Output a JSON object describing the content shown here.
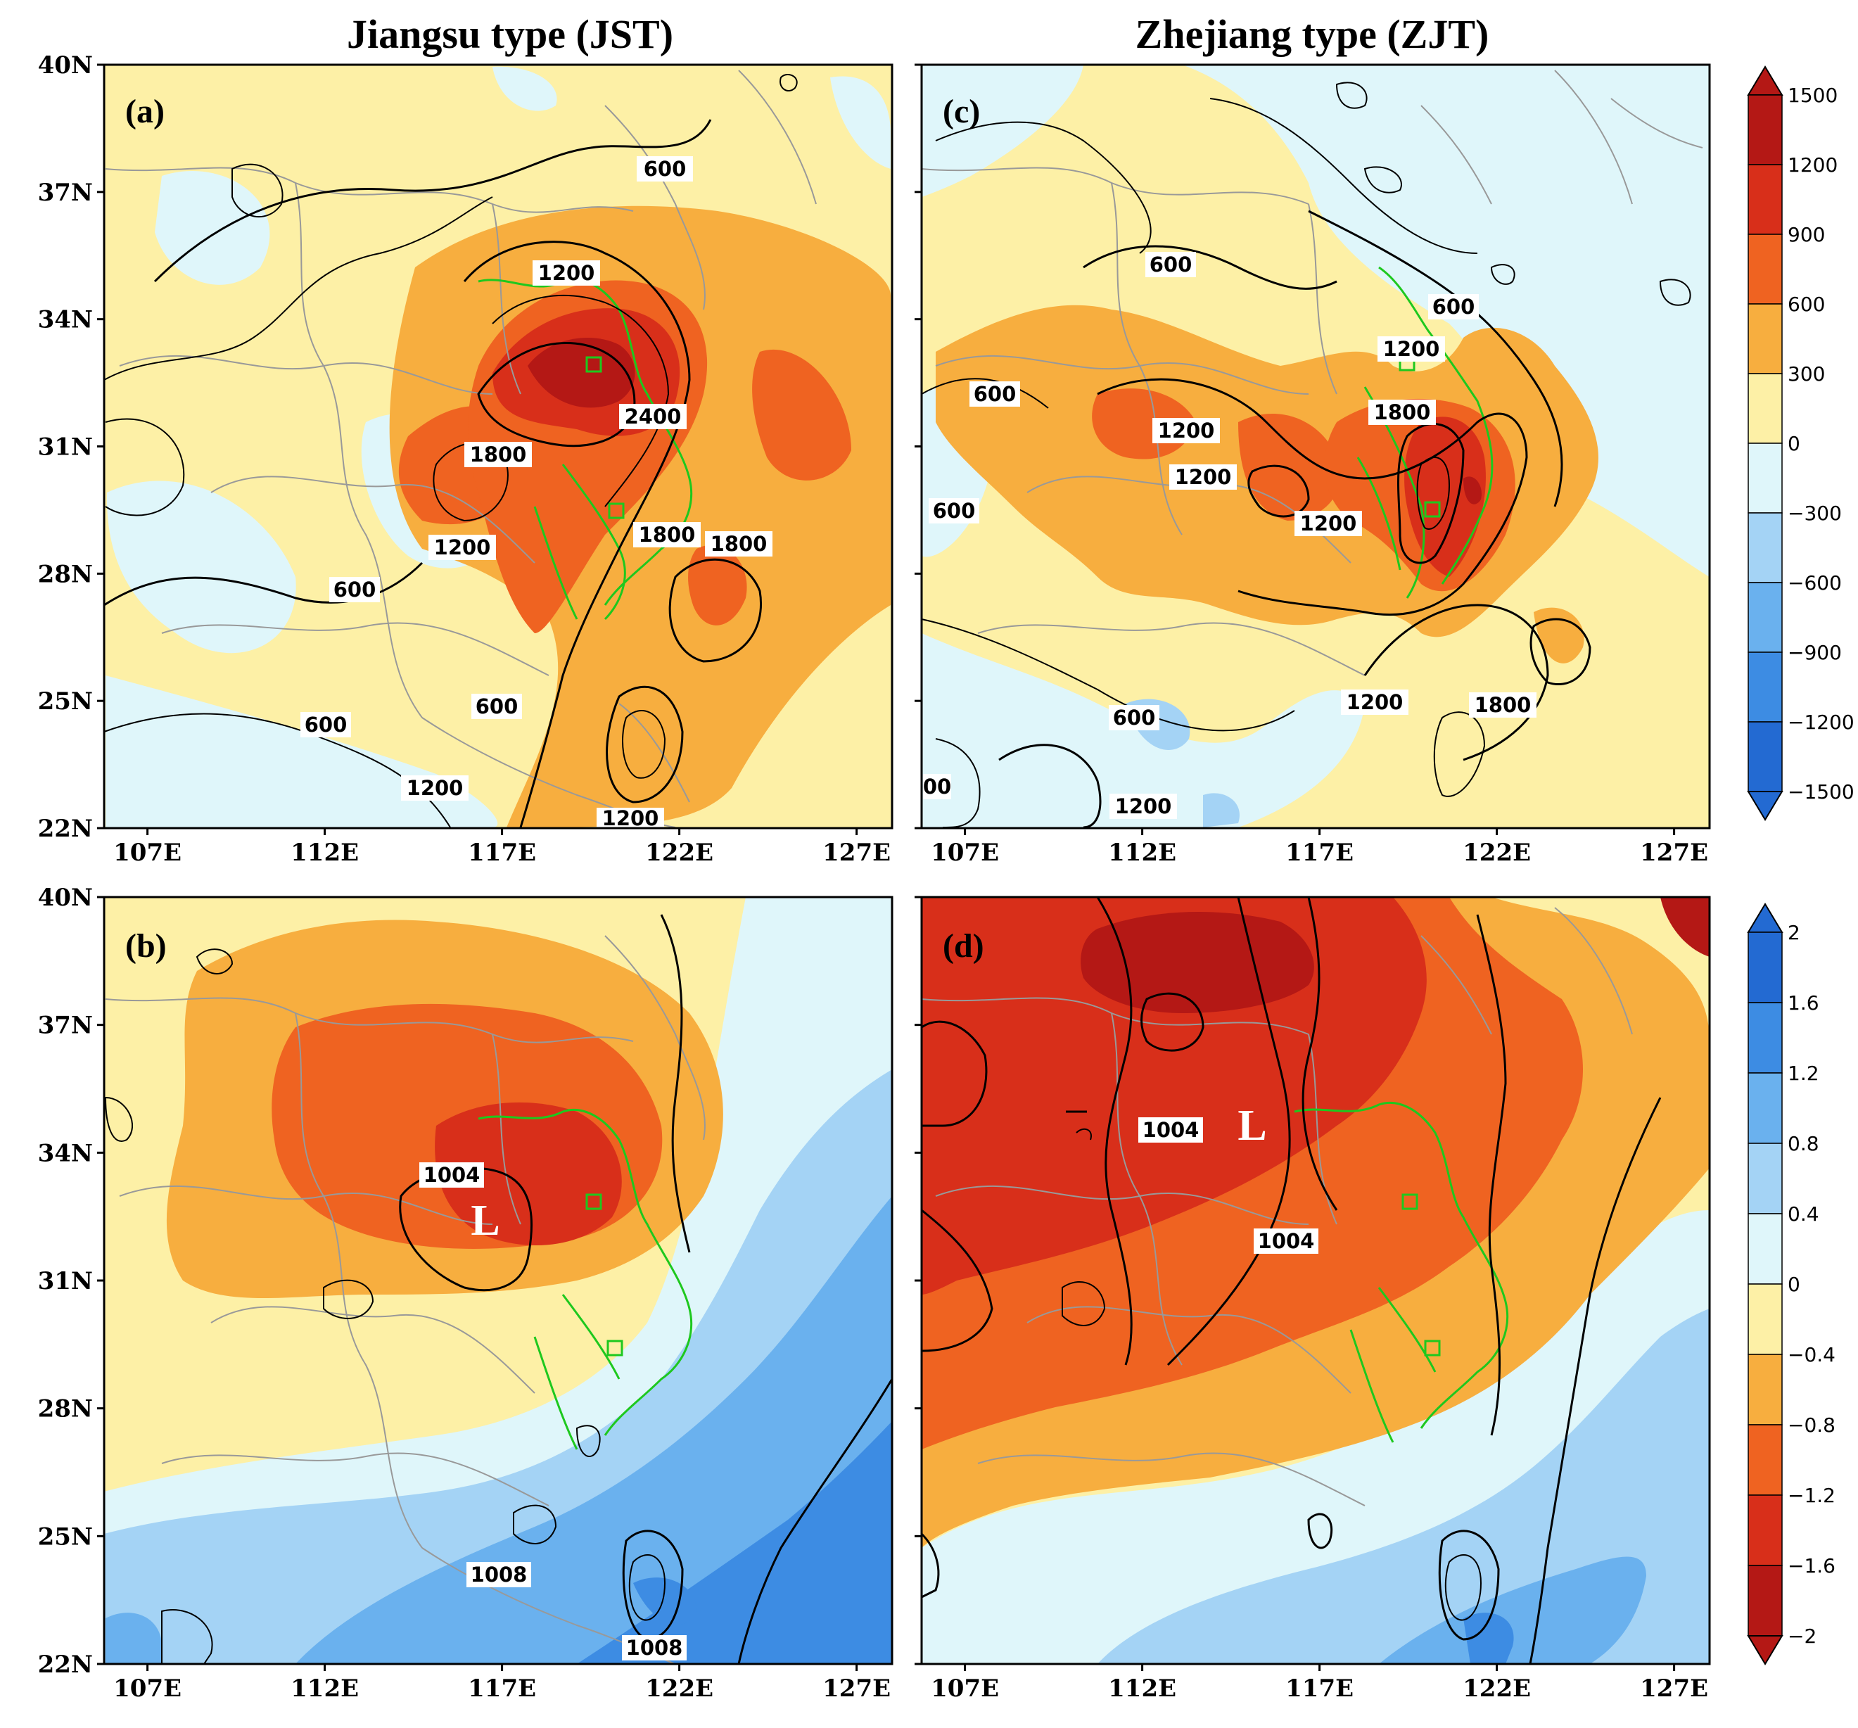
{
  "figure": {
    "column_titles": [
      "Jiangsu type (JST)",
      "Zhejiang type (ZJT)"
    ],
    "lat_ticks": [
      "40N",
      "37N",
      "34N",
      "31N",
      "28N",
      "25N",
      "22N"
    ],
    "lon_ticks": [
      "107E",
      "112E",
      "117E",
      "122E",
      "127E"
    ]
  },
  "panels": {
    "a": {
      "label": "(a)",
      "contour_labels": [
        "600",
        "1200",
        "2400",
        "1800",
        "1800",
        "1800",
        "1200",
        "600",
        "600",
        "600",
        "1200",
        "1200"
      ]
    },
    "b": {
      "label": "(b)",
      "contour_labels": [
        "1004",
        "1008",
        "1008"
      ],
      "low_marker": "L"
    },
    "c": {
      "label": "(c)",
      "contour_labels": [
        "600",
        "600",
        "1200",
        "600",
        "1800",
        "1200",
        "1200",
        "1200",
        "600",
        "1200",
        "1800",
        "600",
        "1200",
        "00"
      ]
    },
    "d": {
      "label": "(d)",
      "contour_labels": [
        "1004",
        "1004"
      ],
      "low_marker": "L"
    }
  },
  "colorbars": {
    "top": {
      "labels": [
        "1500",
        "1200",
        "900",
        "600",
        "300",
        "0",
        "−300",
        "−600",
        "−900",
        "−1200",
        "−1500"
      ],
      "colors": [
        "#b41815",
        "#d82f1a",
        "#ef6321",
        "#f7ae3f",
        "#fdf0a6",
        "#dff6fa",
        "#a4d3f5",
        "#6ab1ee",
        "#3d8ce3",
        "#236ad2"
      ]
    },
    "bottom": {
      "labels": [
        "2",
        "1.6",
        "1.2",
        "0.8",
        "0.4",
        "0",
        "−0.4",
        "−0.8",
        "−1.2",
        "−1.6",
        "−2"
      ],
      "colors": [
        "#236ad2",
        "#3d8ce3",
        "#6ab1ee",
        "#a4d3f5",
        "#dff6fa",
        "#fdf0a6",
        "#f7ae3f",
        "#ef6321",
        "#d82f1a",
        "#b41815"
      ]
    }
  }
}
